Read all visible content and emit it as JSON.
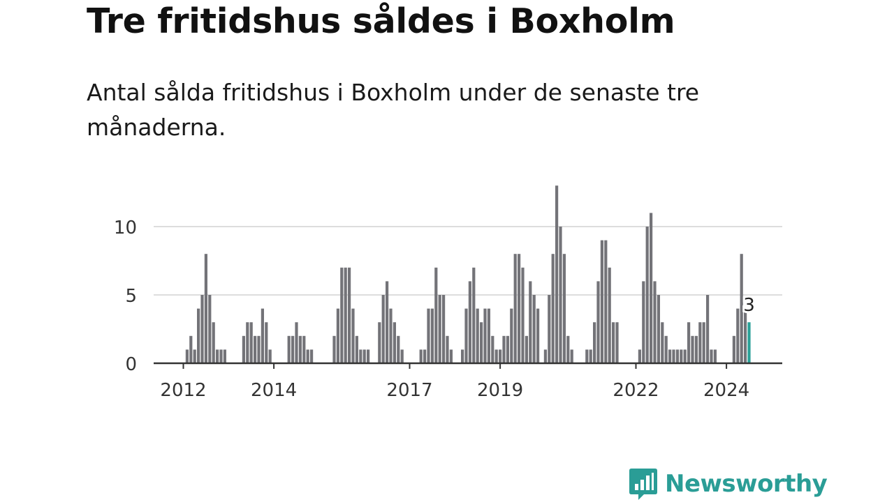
{
  "header": {
    "title": "Tre fritidshus såldes i Boxholm",
    "subtitle": "Antal sålda fritidshus i Boxholm under de senaste tre månaderna."
  },
  "brand": {
    "name": "Newsworthy",
    "color": "#2a9d96",
    "icon": "newsworthy-logo-icon"
  },
  "colors": {
    "bar": "#737378",
    "highlight": "#2aa198",
    "grid": "#dddddd",
    "axis": "#333333"
  },
  "chart_data": {
    "type": "bar",
    "x_unit": "month index (0 = Jan 2011)",
    "xlabel": "",
    "ylabel": "",
    "ylim": [
      0,
      13
    ],
    "yticks": [
      0,
      5,
      10
    ],
    "xticks": [
      {
        "label": "2012",
        "x": 12
      },
      {
        "label": "2014",
        "x": 36
      },
      {
        "label": "2017",
        "x": 72
      },
      {
        "label": "2019",
        "x": 96
      },
      {
        "label": "2022",
        "x": 132
      },
      {
        "label": "2024",
        "x": 156
      }
    ],
    "grid": true,
    "series": [
      {
        "values": [
          {
            "x": 13,
            "y": 1
          },
          {
            "x": 14,
            "y": 2
          },
          {
            "x": 15,
            "y": 1
          },
          {
            "x": 16,
            "y": 4
          },
          {
            "x": 17,
            "y": 5
          },
          {
            "x": 18,
            "y": 8
          },
          {
            "x": 19,
            "y": 5
          },
          {
            "x": 20,
            "y": 3
          },
          {
            "x": 21,
            "y": 1
          },
          {
            "x": 22,
            "y": 1
          },
          {
            "x": 23,
            "y": 1
          },
          {
            "x": 28,
            "y": 2
          },
          {
            "x": 29,
            "y": 3
          },
          {
            "x": 30,
            "y": 3
          },
          {
            "x": 31,
            "y": 2
          },
          {
            "x": 32,
            "y": 2
          },
          {
            "x": 33,
            "y": 4
          },
          {
            "x": 34,
            "y": 3
          },
          {
            "x": 35,
            "y": 1
          },
          {
            "x": 40,
            "y": 2
          },
          {
            "x": 41,
            "y": 2
          },
          {
            "x": 42,
            "y": 3
          },
          {
            "x": 43,
            "y": 2
          },
          {
            "x": 44,
            "y": 2
          },
          {
            "x": 45,
            "y": 1
          },
          {
            "x": 46,
            "y": 1
          },
          {
            "x": 52,
            "y": 2
          },
          {
            "x": 53,
            "y": 4
          },
          {
            "x": 54,
            "y": 7
          },
          {
            "x": 55,
            "y": 7
          },
          {
            "x": 56,
            "y": 7
          },
          {
            "x": 57,
            "y": 4
          },
          {
            "x": 58,
            "y": 2
          },
          {
            "x": 59,
            "y": 1
          },
          {
            "x": 60,
            "y": 1
          },
          {
            "x": 61,
            "y": 1
          },
          {
            "x": 64,
            "y": 3
          },
          {
            "x": 65,
            "y": 5
          },
          {
            "x": 66,
            "y": 6
          },
          {
            "x": 67,
            "y": 4
          },
          {
            "x": 68,
            "y": 3
          },
          {
            "x": 69,
            "y": 2
          },
          {
            "x": 70,
            "y": 1
          },
          {
            "x": 75,
            "y": 1
          },
          {
            "x": 76,
            "y": 1
          },
          {
            "x": 77,
            "y": 4
          },
          {
            "x": 78,
            "y": 4
          },
          {
            "x": 79,
            "y": 7
          },
          {
            "x": 80,
            "y": 5
          },
          {
            "x": 81,
            "y": 5
          },
          {
            "x": 82,
            "y": 2
          },
          {
            "x": 83,
            "y": 1
          },
          {
            "x": 86,
            "y": 1
          },
          {
            "x": 87,
            "y": 4
          },
          {
            "x": 88,
            "y": 6
          },
          {
            "x": 89,
            "y": 7
          },
          {
            "x": 90,
            "y": 4
          },
          {
            "x": 91,
            "y": 3
          },
          {
            "x": 92,
            "y": 4
          },
          {
            "x": 93,
            "y": 4
          },
          {
            "x": 94,
            "y": 2
          },
          {
            "x": 95,
            "y": 1
          },
          {
            "x": 96,
            "y": 1
          },
          {
            "x": 97,
            "y": 2
          },
          {
            "x": 98,
            "y": 2
          },
          {
            "x": 99,
            "y": 4
          },
          {
            "x": 100,
            "y": 8
          },
          {
            "x": 101,
            "y": 8
          },
          {
            "x": 102,
            "y": 7
          },
          {
            "x": 103,
            "y": 2
          },
          {
            "x": 104,
            "y": 6
          },
          {
            "x": 105,
            "y": 5
          },
          {
            "x": 106,
            "y": 4
          },
          {
            "x": 108,
            "y": 1
          },
          {
            "x": 109,
            "y": 5
          },
          {
            "x": 110,
            "y": 8
          },
          {
            "x": 111,
            "y": 13
          },
          {
            "x": 112,
            "y": 10
          },
          {
            "x": 113,
            "y": 8
          },
          {
            "x": 114,
            "y": 2
          },
          {
            "x": 115,
            "y": 1
          },
          {
            "x": 119,
            "y": 1
          },
          {
            "x": 120,
            "y": 1
          },
          {
            "x": 121,
            "y": 3
          },
          {
            "x": 122,
            "y": 6
          },
          {
            "x": 123,
            "y": 9
          },
          {
            "x": 124,
            "y": 9
          },
          {
            "x": 125,
            "y": 7
          },
          {
            "x": 126,
            "y": 3
          },
          {
            "x": 127,
            "y": 3
          },
          {
            "x": 133,
            "y": 1
          },
          {
            "x": 134,
            "y": 6
          },
          {
            "x": 135,
            "y": 10
          },
          {
            "x": 136,
            "y": 11
          },
          {
            "x": 137,
            "y": 6
          },
          {
            "x": 138,
            "y": 5
          },
          {
            "x": 139,
            "y": 3
          },
          {
            "x": 140,
            "y": 2
          },
          {
            "x": 141,
            "y": 1
          },
          {
            "x": 142,
            "y": 1
          },
          {
            "x": 143,
            "y": 1
          },
          {
            "x": 144,
            "y": 1
          },
          {
            "x": 145,
            "y": 1
          },
          {
            "x": 146,
            "y": 3
          },
          {
            "x": 147,
            "y": 2
          },
          {
            "x": 148,
            "y": 2
          },
          {
            "x": 149,
            "y": 3
          },
          {
            "x": 150,
            "y": 3
          },
          {
            "x": 151,
            "y": 5
          },
          {
            "x": 152,
            "y": 1
          },
          {
            "x": 153,
            "y": 1
          },
          {
            "x": 158,
            "y": 2
          },
          {
            "x": 159,
            "y": 4
          },
          {
            "x": 160,
            "y": 8
          },
          {
            "x": 161,
            "y": 4
          }
        ]
      }
    ],
    "highlight": {
      "x": 162,
      "y": 3,
      "label": "3"
    }
  }
}
